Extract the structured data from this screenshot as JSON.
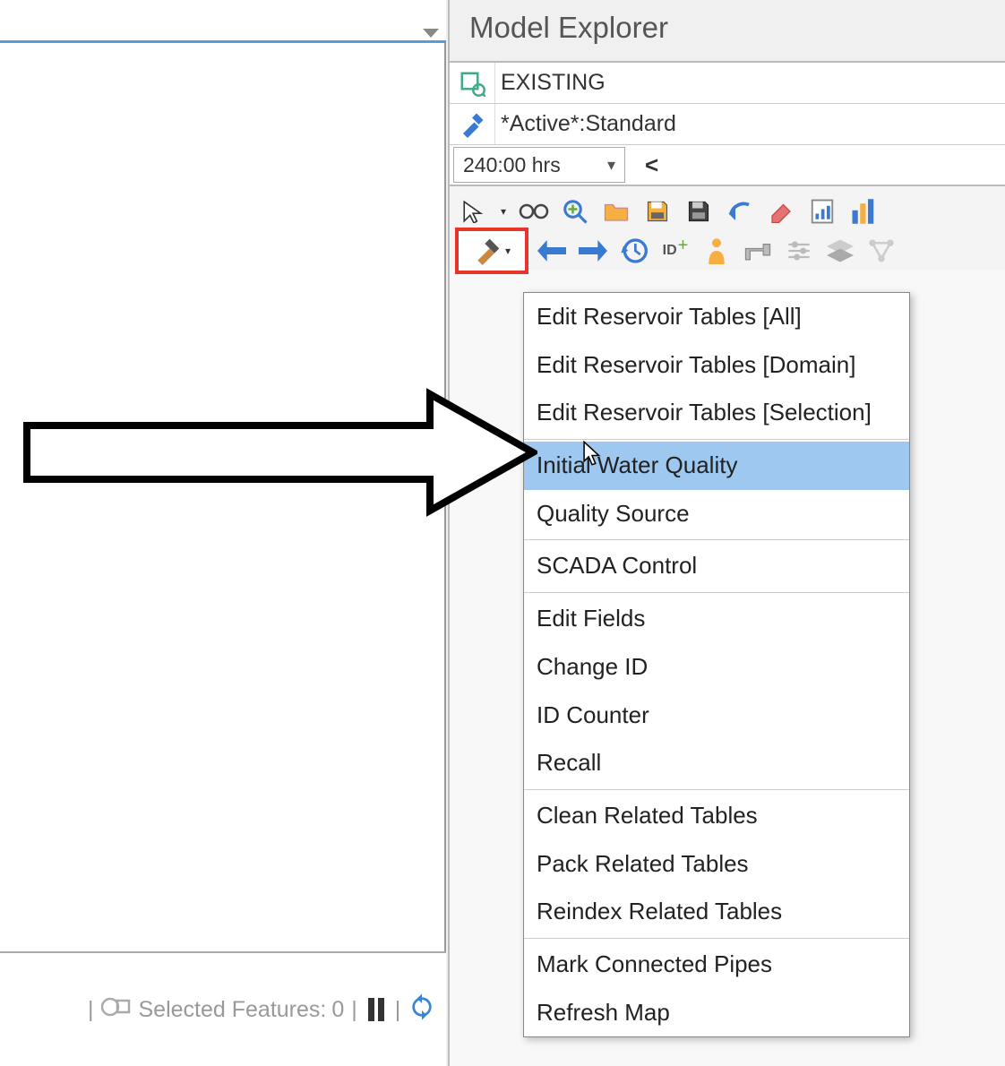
{
  "panel": {
    "title": "Model Explorer",
    "scenario_label": "EXISTING",
    "active_label": "*Active*:Standard",
    "time_value": "240:00 hrs",
    "prev_symbol": "<"
  },
  "status": {
    "selected_label": "Selected Features:",
    "selected_count": "0"
  },
  "menu": {
    "items": [
      {
        "label": "Edit Reservoir Tables [All]"
      },
      {
        "label": "Edit Reservoir Tables [Domain]"
      },
      {
        "label": "Edit Reservoir Tables [Selection]"
      },
      {
        "sep": true
      },
      {
        "label": "Initial Water Quality",
        "highlight": true
      },
      {
        "label": "Quality Source"
      },
      {
        "sep": true
      },
      {
        "label": "SCADA Control"
      },
      {
        "sep": true
      },
      {
        "label": "Edit Fields"
      },
      {
        "label": "Change ID"
      },
      {
        "label": "ID Counter"
      },
      {
        "label": "Recall"
      },
      {
        "sep": true
      },
      {
        "label": "Clean Related Tables"
      },
      {
        "label": "Pack Related Tables"
      },
      {
        "label": "Reindex Related Tables"
      },
      {
        "sep": true
      },
      {
        "label": "Mark Connected Pipes"
      },
      {
        "label": "Refresh Map"
      }
    ]
  },
  "colors": {
    "accent": "#5b9bd5",
    "highlight_box": "#e8342a",
    "menu_highlight": "#9ec8f0"
  }
}
